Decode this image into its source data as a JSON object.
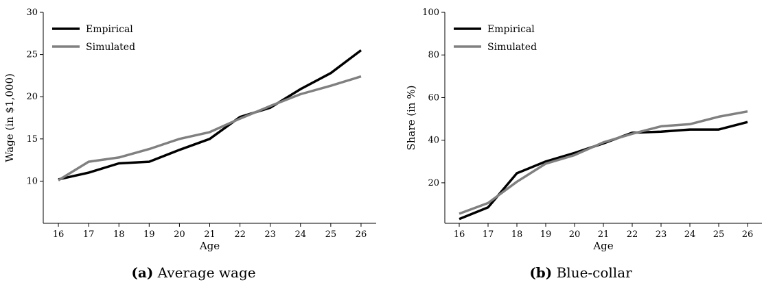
{
  "colors": {
    "empirical": "#000000",
    "simulated": "#808080"
  },
  "chart_data": [
    {
      "type": "line",
      "caption_tag": "(a)",
      "caption_text": "Average wage",
      "xlabel": "Age",
      "ylabel": "Wage (in $1,000)",
      "x": [
        16,
        17,
        18,
        19,
        20,
        21,
        22,
        23,
        24,
        25,
        26
      ],
      "xlim": [
        15.5,
        26.5
      ],
      "ylim": [
        5,
        30
      ],
      "xticks": [
        16,
        17,
        18,
        19,
        20,
        21,
        22,
        23,
        24,
        25,
        26
      ],
      "yticks": [
        10,
        15,
        20,
        25,
        30
      ],
      "grid": false,
      "legend_position": "top-left",
      "series": [
        {
          "name": "Empirical",
          "color_key": "empirical",
          "values": [
            10.2,
            11.0,
            12.1,
            12.3,
            13.7,
            15.0,
            17.6,
            18.7,
            20.9,
            22.8,
            25.5
          ]
        },
        {
          "name": "Simulated",
          "color_key": "simulated",
          "values": [
            10.1,
            12.3,
            12.8,
            13.8,
            15.0,
            15.8,
            17.4,
            18.9,
            20.3,
            21.3,
            22.4
          ]
        }
      ]
    },
    {
      "type": "line",
      "caption_tag": "(b)",
      "caption_text": "Blue-collar",
      "xlabel": "Age",
      "ylabel": "Share (in %)",
      "x": [
        16,
        17,
        18,
        19,
        20,
        21,
        22,
        23,
        24,
        25,
        26
      ],
      "xlim": [
        15.5,
        26.5
      ],
      "ylim": [
        1,
        100
      ],
      "xticks": [
        16,
        17,
        18,
        19,
        20,
        21,
        22,
        23,
        24,
        25,
        26
      ],
      "yticks": [
        20,
        40,
        60,
        80,
        100
      ],
      "grid": false,
      "legend_position": "top-left",
      "series": [
        {
          "name": "Empirical",
          "color_key": "empirical",
          "values": [
            3,
            8.5,
            24.5,
            30,
            34,
            38.5,
            43.5,
            44,
            45,
            45,
            48.5
          ]
        },
        {
          "name": "Simulated",
          "color_key": "simulated",
          "values": [
            5.5,
            10.5,
            20.5,
            29,
            33,
            39,
            43,
            46.5,
            47.5,
            51,
            53.5
          ]
        }
      ]
    }
  ]
}
